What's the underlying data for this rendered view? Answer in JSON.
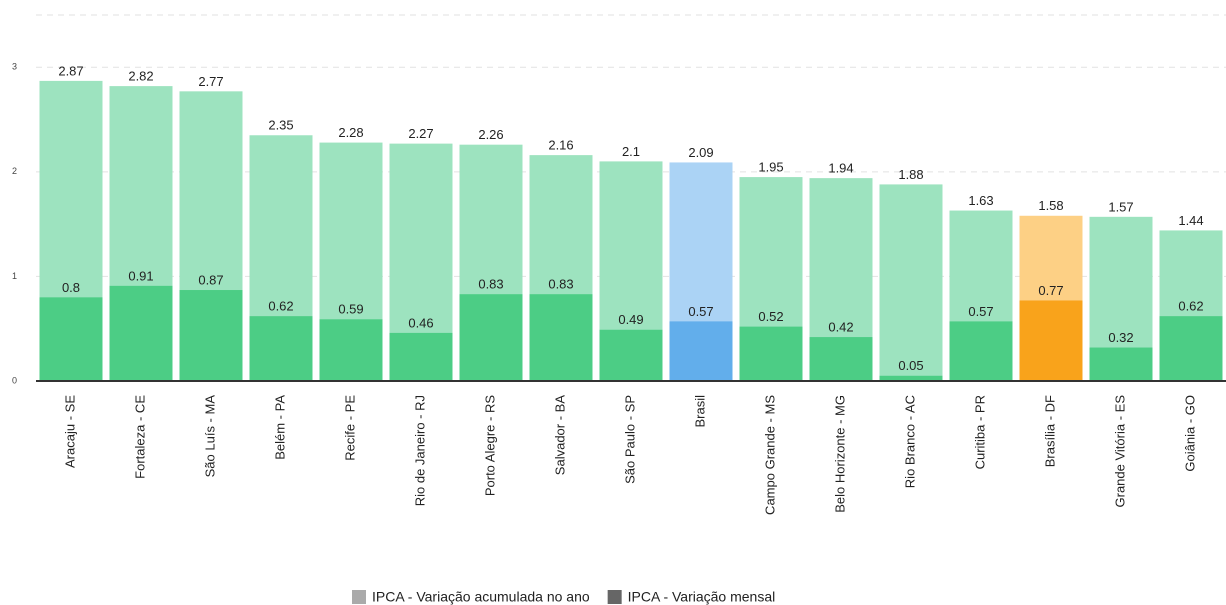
{
  "chart_data": {
    "type": "bar",
    "categories": [
      "Aracaju - SE",
      "Fortaleza - CE",
      "São Luís - MA",
      "Belém - PA",
      "Recife - PE",
      "Rio de Janeiro - RJ",
      "Porto Alegre - RS",
      "Salvador - BA",
      "São Paulo - SP",
      "Brasil",
      "Campo Grande - MS",
      "Belo Horizonte - MG",
      "Rio Branco - AC",
      "Curitiba - PR",
      "Brasília - DF",
      "Grande Vitória - ES",
      "Goiânia - GO"
    ],
    "series": [
      {
        "name": "IPCA - Variação acumulada no ano",
        "color": "#aaaaaa",
        "colors": [
          "#9de3bf",
          "#9de3bf",
          "#9de3bf",
          "#9de3bf",
          "#9de3bf",
          "#9de3bf",
          "#9de3bf",
          "#9de3bf",
          "#9de3bf",
          "#abd3f5",
          "#9de3bf",
          "#9de3bf",
          "#9de3bf",
          "#9de3bf",
          "#fdd085",
          "#9de3bf",
          "#9de3bf"
        ],
        "values": [
          2.87,
          2.82,
          2.77,
          2.35,
          2.28,
          2.27,
          2.26,
          2.16,
          2.1,
          2.09,
          1.95,
          1.94,
          1.88,
          1.63,
          1.58,
          1.57,
          1.44
        ]
      },
      {
        "name": "IPCA - Variação mensal",
        "color": "#666666",
        "colors": [
          "#4ccd85",
          "#4ccd85",
          "#4ccd85",
          "#4ccd85",
          "#4ccd85",
          "#4ccd85",
          "#4ccd85",
          "#4ccd85",
          "#4ccd85",
          "#62aeeb",
          "#4ccd85",
          "#4ccd85",
          "#4ccd85",
          "#4ccd85",
          "#f9a31b",
          "#4ccd85",
          "#4ccd85"
        ],
        "values": [
          0.8,
          0.91,
          0.87,
          0.62,
          0.59,
          0.46,
          0.83,
          0.83,
          0.49,
          0.57,
          0.52,
          0.42,
          0.05,
          0.57,
          0.77,
          0.32,
          0.62
        ]
      }
    ],
    "ylim": [
      0,
      3.5
    ],
    "yticks": [
      0,
      1,
      2,
      3
    ],
    "grid": true
  }
}
